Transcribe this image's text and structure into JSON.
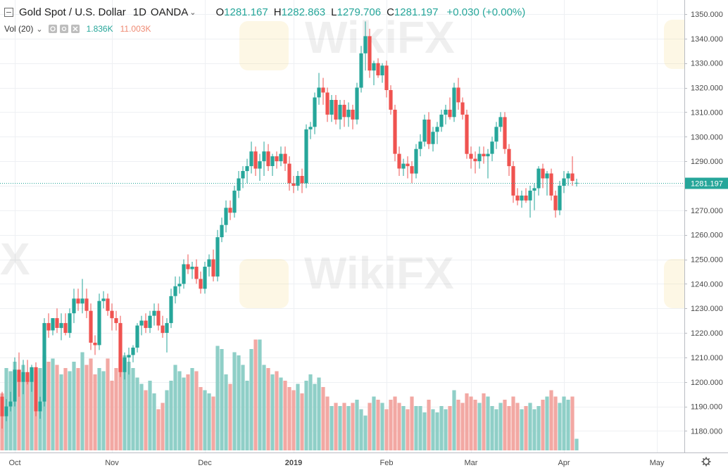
{
  "header": {
    "symbol_title": "Gold Spot / U.S. Dollar",
    "interval": "1D",
    "broker": "OANDA",
    "o_label": "O",
    "o_value": "1281.167",
    "h_label": "H",
    "h_value": "1282.863",
    "l_label": "L",
    "l_value": "1279.706",
    "c_label": "C",
    "c_value": "1281.197",
    "change": "+0.030 (+0.00%)"
  },
  "volume_legend": {
    "name": "Vol (20)",
    "value_up": "1.836K",
    "value_ma": "11.003K"
  },
  "watermark": "WikiFX",
  "icons": [
    "collapse-icon",
    "chevron-down-icon",
    "eye-icon",
    "settings-icon",
    "close-icon",
    "gear-icon"
  ],
  "colors": {
    "up": "#26a69a",
    "down": "#ef5350",
    "vol_up": "#8fcfc7",
    "vol_down": "#f2a8a3",
    "last_price": "#26a69a"
  },
  "chart_data": {
    "type": "candlestick",
    "title": "Gold Spot / U.S. Dollar",
    "ylim": [
      1172,
      1353
    ],
    "y_ticks": [
      "1180.000",
      "1190.000",
      "1200.000",
      "1210.000",
      "1220.000",
      "1230.000",
      "1240.000",
      "1250.000",
      "1260.000",
      "1270.000",
      "1280.000",
      "1290.000",
      "1300.000",
      "1310.000",
      "1320.000",
      "1330.000",
      "1340.000",
      "1350.000"
    ],
    "x_labels": [
      {
        "label": "Oct",
        "index": 3
      },
      {
        "label": "Nov",
        "index": 26
      },
      {
        "label": "Dec",
        "index": 48
      },
      {
        "label": "2019",
        "index": 69
      },
      {
        "label": "Feb",
        "index": 91
      },
      {
        "label": "Mar",
        "index": 111
      },
      {
        "label": "Apr",
        "index": 133
      },
      {
        "label": "May",
        "index": 155
      }
    ],
    "last_price": "1281.197",
    "volume_scale_max": 20000,
    "candles": [
      {
        "o": 1194.0,
        "h": 1196.0,
        "l": 1181.0,
        "c": 1186.0,
        "v": 9000
      },
      {
        "o": 1186.0,
        "h": 1193.0,
        "l": 1184.0,
        "c": 1190.0,
        "v": 13000
      },
      {
        "o": 1190.0,
        "h": 1196.0,
        "l": 1188.0,
        "c": 1192.0,
        "v": 12500
      },
      {
        "o": 1192.0,
        "h": 1210.0,
        "l": 1190.0,
        "c": 1205.0,
        "v": 14000
      },
      {
        "o": 1205.0,
        "h": 1212.0,
        "l": 1194.0,
        "c": 1200.0,
        "v": 12000
      },
      {
        "o": 1200.0,
        "h": 1209.0,
        "l": 1195.0,
        "c": 1204.0,
        "v": 13500
      },
      {
        "o": 1204.0,
        "h": 1209.0,
        "l": 1199.0,
        "c": 1200.0,
        "v": 12000
      },
      {
        "o": 1200.0,
        "h": 1207.0,
        "l": 1196.0,
        "c": 1206.0,
        "v": 13000
      },
      {
        "o": 1206.0,
        "h": 1208.0,
        "l": 1186.0,
        "c": 1188.0,
        "v": 12500
      },
      {
        "o": 1188.0,
        "h": 1194.0,
        "l": 1185.0,
        "c": 1192.0,
        "v": 13000
      },
      {
        "o": 1192.0,
        "h": 1226.0,
        "l": 1190.0,
        "c": 1224.0,
        "v": 15000
      },
      {
        "o": 1224.0,
        "h": 1228.0,
        "l": 1218.0,
        "c": 1221.0,
        "v": 14000
      },
      {
        "o": 1221.0,
        "h": 1226.0,
        "l": 1219.0,
        "c": 1226.0,
        "v": 14500
      },
      {
        "o": 1226.0,
        "h": 1230.0,
        "l": 1220.0,
        "c": 1222.0,
        "v": 13500
      },
      {
        "o": 1222.0,
        "h": 1228.0,
        "l": 1217.0,
        "c": 1224.0,
        "v": 12000
      },
      {
        "o": 1224.0,
        "h": 1228.0,
        "l": 1219.0,
        "c": 1220.0,
        "v": 13000
      },
      {
        "o": 1220.0,
        "h": 1230.0,
        "l": 1218.0,
        "c": 1228.0,
        "v": 12500
      },
      {
        "o": 1228.0,
        "h": 1238.0,
        "l": 1224.0,
        "c": 1234.0,
        "v": 14000
      },
      {
        "o": 1234.0,
        "h": 1238.0,
        "l": 1229.0,
        "c": 1232.0,
        "v": 13000
      },
      {
        "o": 1232.0,
        "h": 1242.0,
        "l": 1228.0,
        "c": 1234.0,
        "v": 15500
      },
      {
        "o": 1234.0,
        "h": 1238.0,
        "l": 1226.0,
        "c": 1229.0,
        "v": 13500
      },
      {
        "o": 1229.0,
        "h": 1232.0,
        "l": 1213.0,
        "c": 1216.0,
        "v": 14500
      },
      {
        "o": 1216.0,
        "h": 1219.0,
        "l": 1211.0,
        "c": 1215.0,
        "v": 12000
      },
      {
        "o": 1215.0,
        "h": 1236.0,
        "l": 1213.0,
        "c": 1233.0,
        "v": 13000
      },
      {
        "o": 1233.0,
        "h": 1237.0,
        "l": 1230.0,
        "c": 1234.0,
        "v": 12500
      },
      {
        "o": 1234.0,
        "h": 1236.0,
        "l": 1227.0,
        "c": 1229.0,
        "v": 14500
      },
      {
        "o": 1229.0,
        "h": 1232.0,
        "l": 1221.0,
        "c": 1226.0,
        "v": 11000
      },
      {
        "o": 1226.0,
        "h": 1229.0,
        "l": 1221.0,
        "c": 1224.0,
        "v": 13000
      },
      {
        "o": 1224.0,
        "h": 1227.0,
        "l": 1202.0,
        "c": 1204.0,
        "v": 14500
      },
      {
        "o": 1204.0,
        "h": 1212.0,
        "l": 1201.0,
        "c": 1210.0,
        "v": 15000
      },
      {
        "o": 1210.0,
        "h": 1214.0,
        "l": 1203.0,
        "c": 1211.0,
        "v": 14000
      },
      {
        "o": 1211.0,
        "h": 1215.0,
        "l": 1208.0,
        "c": 1214.0,
        "v": 13000
      },
      {
        "o": 1214.0,
        "h": 1224.0,
        "l": 1212.0,
        "c": 1223.0,
        "v": 11500
      },
      {
        "o": 1223.0,
        "h": 1227.0,
        "l": 1219.0,
        "c": 1225.0,
        "v": 10500
      },
      {
        "o": 1225.0,
        "h": 1228.0,
        "l": 1220.0,
        "c": 1222.0,
        "v": 9500
      },
      {
        "o": 1222.0,
        "h": 1229.0,
        "l": 1220.0,
        "c": 1227.0,
        "v": 11000
      },
      {
        "o": 1227.0,
        "h": 1232.0,
        "l": 1223.0,
        "c": 1229.0,
        "v": 9000
      },
      {
        "o": 1229.0,
        "h": 1232.0,
        "l": 1221.0,
        "c": 1223.0,
        "v": 6500
      },
      {
        "o": 1223.0,
        "h": 1227.0,
        "l": 1218.0,
        "c": 1220.0,
        "v": 7500
      },
      {
        "o": 1220.0,
        "h": 1226.0,
        "l": 1212.0,
        "c": 1224.0,
        "v": 9500
      },
      {
        "o": 1224.0,
        "h": 1238.0,
        "l": 1222.0,
        "c": 1235.0,
        "v": 11000
      },
      {
        "o": 1235.0,
        "h": 1243.0,
        "l": 1232.0,
        "c": 1239.0,
        "v": 13500
      },
      {
        "o": 1239.0,
        "h": 1243.0,
        "l": 1236.0,
        "c": 1240.0,
        "v": 12500
      },
      {
        "o": 1240.0,
        "h": 1250.0,
        "l": 1238.0,
        "c": 1248.0,
        "v": 11500
      },
      {
        "o": 1248.0,
        "h": 1252.0,
        "l": 1244.0,
        "c": 1246.0,
        "v": 12000
      },
      {
        "o": 1246.0,
        "h": 1249.0,
        "l": 1242.0,
        "c": 1247.0,
        "v": 13000
      },
      {
        "o": 1247.0,
        "h": 1250.0,
        "l": 1240.0,
        "c": 1242.0,
        "v": 12500
      },
      {
        "o": 1242.0,
        "h": 1245.0,
        "l": 1236.0,
        "c": 1238.0,
        "v": 10000
      },
      {
        "o": 1238.0,
        "h": 1249.0,
        "l": 1236.0,
        "c": 1247.0,
        "v": 9500
      },
      {
        "o": 1247.0,
        "h": 1252.0,
        "l": 1243.0,
        "c": 1250.0,
        "v": 9000
      },
      {
        "o": 1250.0,
        "h": 1254.0,
        "l": 1241.0,
        "c": 1243.0,
        "v": 8500
      },
      {
        "o": 1243.0,
        "h": 1262.0,
        "l": 1241.0,
        "c": 1259.0,
        "v": 16500
      },
      {
        "o": 1259.0,
        "h": 1267.0,
        "l": 1257.0,
        "c": 1264.0,
        "v": 16000
      },
      {
        "o": 1264.0,
        "h": 1274.0,
        "l": 1261.0,
        "c": 1271.0,
        "v": 12000
      },
      {
        "o": 1271.0,
        "h": 1274.0,
        "l": 1266.0,
        "c": 1269.0,
        "v": 10500
      },
      {
        "o": 1269.0,
        "h": 1280.0,
        "l": 1267.0,
        "c": 1278.0,
        "v": 15500
      },
      {
        "o": 1278.0,
        "h": 1286.0,
        "l": 1275.0,
        "c": 1283.0,
        "v": 15000
      },
      {
        "o": 1283.0,
        "h": 1288.0,
        "l": 1279.0,
        "c": 1286.0,
        "v": 13500
      },
      {
        "o": 1286.0,
        "h": 1291.0,
        "l": 1281.0,
        "c": 1288.0,
        "v": 11000
      },
      {
        "o": 1288.0,
        "h": 1298.0,
        "l": 1285.0,
        "c": 1294.0,
        "v": 16000
      },
      {
        "o": 1294.0,
        "h": 1296.0,
        "l": 1284.0,
        "c": 1287.0,
        "v": 17500
      },
      {
        "o": 1287.0,
        "h": 1293.0,
        "l": 1282.0,
        "c": 1290.0,
        "v": 17500
      },
      {
        "o": 1290.0,
        "h": 1298.0,
        "l": 1284.0,
        "c": 1294.0,
        "v": 13500
      },
      {
        "o": 1294.0,
        "h": 1297.0,
        "l": 1286.0,
        "c": 1288.0,
        "v": 13000
      },
      {
        "o": 1288.0,
        "h": 1293.0,
        "l": 1284.0,
        "c": 1292.0,
        "v": 12000
      },
      {
        "o": 1292.0,
        "h": 1294.0,
        "l": 1287.0,
        "c": 1290.0,
        "v": 12500
      },
      {
        "o": 1290.0,
        "h": 1296.0,
        "l": 1288.0,
        "c": 1293.0,
        "v": 11500
      },
      {
        "o": 1293.0,
        "h": 1296.0,
        "l": 1286.0,
        "c": 1289.0,
        "v": 11000
      },
      {
        "o": 1289.0,
        "h": 1292.0,
        "l": 1278.0,
        "c": 1281.0,
        "v": 10000
      },
      {
        "o": 1281.0,
        "h": 1284.0,
        "l": 1277.0,
        "c": 1280.0,
        "v": 9500
      },
      {
        "o": 1280.0,
        "h": 1286.0,
        "l": 1278.0,
        "c": 1284.0,
        "v": 10500
      },
      {
        "o": 1284.0,
        "h": 1287.0,
        "l": 1277.0,
        "c": 1281.0,
        "v": 9000
      },
      {
        "o": 1281.0,
        "h": 1305.0,
        "l": 1279.0,
        "c": 1303.0,
        "v": 11000
      },
      {
        "o": 1303.0,
        "h": 1306.0,
        "l": 1299.0,
        "c": 1304.0,
        "v": 12000
      },
      {
        "o": 1304.0,
        "h": 1318.0,
        "l": 1301.0,
        "c": 1316.0,
        "v": 10500
      },
      {
        "o": 1316.0,
        "h": 1326.0,
        "l": 1313.0,
        "c": 1320.0,
        "v": 11500
      },
      {
        "o": 1320.0,
        "h": 1324.0,
        "l": 1313.0,
        "c": 1318.0,
        "v": 10000
      },
      {
        "o": 1318.0,
        "h": 1320.0,
        "l": 1306.0,
        "c": 1309.0,
        "v": 8500
      },
      {
        "o": 1309.0,
        "h": 1317.0,
        "l": 1306.0,
        "c": 1315.0,
        "v": 7000
      },
      {
        "o": 1315.0,
        "h": 1317.0,
        "l": 1305.0,
        "c": 1307.0,
        "v": 7500
      },
      {
        "o": 1307.0,
        "h": 1315.0,
        "l": 1303.0,
        "c": 1313.0,
        "v": 7000
      },
      {
        "o": 1313.0,
        "h": 1315.0,
        "l": 1304.0,
        "c": 1308.0,
        "v": 7500
      },
      {
        "o": 1308.0,
        "h": 1314.0,
        "l": 1304.0,
        "c": 1311.0,
        "v": 7000
      },
      {
        "o": 1311.0,
        "h": 1313.0,
        "l": 1303.0,
        "c": 1307.0,
        "v": 7500
      },
      {
        "o": 1307.0,
        "h": 1322.0,
        "l": 1305.0,
        "c": 1320.0,
        "v": 8000
      },
      {
        "o": 1320.0,
        "h": 1337.0,
        "l": 1318.0,
        "c": 1334.0,
        "v": 6500
      },
      {
        "o": 1334.0,
        "h": 1347.0,
        "l": 1327.0,
        "c": 1341.0,
        "v": 5500
      },
      {
        "o": 1341.0,
        "h": 1344.0,
        "l": 1324.0,
        "c": 1327.0,
        "v": 7500
      },
      {
        "o": 1327.0,
        "h": 1331.0,
        "l": 1321.0,
        "c": 1330.0,
        "v": 8500
      },
      {
        "o": 1330.0,
        "h": 1332.0,
        "l": 1324.0,
        "c": 1325.0,
        "v": 8000
      },
      {
        "o": 1325.0,
        "h": 1330.0,
        "l": 1322.0,
        "c": 1329.0,
        "v": 7500
      },
      {
        "o": 1329.0,
        "h": 1331.0,
        "l": 1316.0,
        "c": 1319.0,
        "v": 6500
      },
      {
        "o": 1319.0,
        "h": 1321.0,
        "l": 1309.0,
        "c": 1311.0,
        "v": 8000
      },
      {
        "o": 1311.0,
        "h": 1313.0,
        "l": 1290.0,
        "c": 1293.0,
        "v": 8500
      },
      {
        "o": 1293.0,
        "h": 1296.0,
        "l": 1284.0,
        "c": 1287.0,
        "v": 7500
      },
      {
        "o": 1287.0,
        "h": 1291.0,
        "l": 1284.0,
        "c": 1289.0,
        "v": 7000
      },
      {
        "o": 1289.0,
        "h": 1292.0,
        "l": 1283.0,
        "c": 1288.0,
        "v": 6500
      },
      {
        "o": 1288.0,
        "h": 1290.0,
        "l": 1281.0,
        "c": 1285.0,
        "v": 8500
      },
      {
        "o": 1285.0,
        "h": 1297.0,
        "l": 1283.0,
        "c": 1295.0,
        "v": 7000
      },
      {
        "o": 1295.0,
        "h": 1301.0,
        "l": 1292.0,
        "c": 1298.0,
        "v": 7000
      },
      {
        "o": 1298.0,
        "h": 1309.0,
        "l": 1296.0,
        "c": 1307.0,
        "v": 6000
      },
      {
        "o": 1307.0,
        "h": 1310.0,
        "l": 1295.0,
        "c": 1297.0,
        "v": 8000
      },
      {
        "o": 1297.0,
        "h": 1304.0,
        "l": 1294.0,
        "c": 1302.0,
        "v": 6500
      },
      {
        "o": 1302.0,
        "h": 1306.0,
        "l": 1297.0,
        "c": 1304.0,
        "v": 6000
      },
      {
        "o": 1304.0,
        "h": 1311.0,
        "l": 1302.0,
        "c": 1309.0,
        "v": 7000
      },
      {
        "o": 1309.0,
        "h": 1313.0,
        "l": 1305.0,
        "c": 1311.0,
        "v": 6500
      },
      {
        "o": 1311.0,
        "h": 1316.0,
        "l": 1307.0,
        "c": 1308.0,
        "v": 7000
      },
      {
        "o": 1308.0,
        "h": 1322.0,
        "l": 1306.0,
        "c": 1320.0,
        "v": 9500
      },
      {
        "o": 1320.0,
        "h": 1324.0,
        "l": 1311.0,
        "c": 1314.0,
        "v": 8000
      },
      {
        "o": 1314.0,
        "h": 1316.0,
        "l": 1307.0,
        "c": 1309.0,
        "v": 7500
      },
      {
        "o": 1309.0,
        "h": 1311.0,
        "l": 1291.0,
        "c": 1293.0,
        "v": 9000
      },
      {
        "o": 1293.0,
        "h": 1296.0,
        "l": 1287.0,
        "c": 1291.0,
        "v": 8500
      },
      {
        "o": 1291.0,
        "h": 1294.0,
        "l": 1285.0,
        "c": 1290.0,
        "v": 8000
      },
      {
        "o": 1290.0,
        "h": 1296.0,
        "l": 1287.0,
        "c": 1293.0,
        "v": 7500
      },
      {
        "o": 1293.0,
        "h": 1296.0,
        "l": 1289.0,
        "c": 1292.0,
        "v": 9000
      },
      {
        "o": 1292.0,
        "h": 1295.0,
        "l": 1283.0,
        "c": 1293.0,
        "v": 8500
      },
      {
        "o": 1293.0,
        "h": 1300.0,
        "l": 1290.0,
        "c": 1298.0,
        "v": 7000
      },
      {
        "o": 1298.0,
        "h": 1306.0,
        "l": 1295.0,
        "c": 1304.0,
        "v": 6500
      },
      {
        "o": 1304.0,
        "h": 1310.0,
        "l": 1302.0,
        "c": 1308.0,
        "v": 7500
      },
      {
        "o": 1308.0,
        "h": 1310.0,
        "l": 1293.0,
        "c": 1295.0,
        "v": 8000
      },
      {
        "o": 1295.0,
        "h": 1297.0,
        "l": 1284.0,
        "c": 1288.0,
        "v": 7000
      },
      {
        "o": 1288.0,
        "h": 1290.0,
        "l": 1273.0,
        "c": 1276.0,
        "v": 8500
      },
      {
        "o": 1276.0,
        "h": 1279.0,
        "l": 1272.0,
        "c": 1274.0,
        "v": 7500
      },
      {
        "o": 1274.0,
        "h": 1278.0,
        "l": 1271.0,
        "c": 1276.0,
        "v": 6500
      },
      {
        "o": 1276.0,
        "h": 1279.0,
        "l": 1273.0,
        "c": 1274.0,
        "v": 7000
      },
      {
        "o": 1274.0,
        "h": 1280.0,
        "l": 1267.0,
        "c": 1278.0,
        "v": 7500
      },
      {
        "o": 1278.0,
        "h": 1281.0,
        "l": 1270.0,
        "c": 1279.0,
        "v": 6500
      },
      {
        "o": 1279.0,
        "h": 1288.0,
        "l": 1276.0,
        "c": 1287.0,
        "v": 7000
      },
      {
        "o": 1287.0,
        "h": 1289.0,
        "l": 1279.0,
        "c": 1283.0,
        "v": 8000
      },
      {
        "o": 1283.0,
        "h": 1286.0,
        "l": 1276.0,
        "c": 1285.0,
        "v": 8500
      },
      {
        "o": 1285.0,
        "h": 1287.0,
        "l": 1274.0,
        "c": 1276.0,
        "v": 9500
      },
      {
        "o": 1276.0,
        "h": 1278.0,
        "l": 1267.0,
        "c": 1270.0,
        "v": 8500
      },
      {
        "o": 1270.0,
        "h": 1282.0,
        "l": 1268.0,
        "c": 1280.0,
        "v": 7500
      },
      {
        "o": 1280.0,
        "h": 1286.0,
        "l": 1277.0,
        "c": 1283.0,
        "v": 8500
      },
      {
        "o": 1283.0,
        "h": 1286.0,
        "l": 1280.0,
        "c": 1285.0,
        "v": 8000
      },
      {
        "o": 1285.0,
        "h": 1292.0,
        "l": 1280.0,
        "c": 1282.0,
        "v": 8500
      },
      {
        "o": 1281.167,
        "h": 1282.863,
        "l": 1279.706,
        "c": 1281.197,
        "v": 1836
      }
    ]
  }
}
